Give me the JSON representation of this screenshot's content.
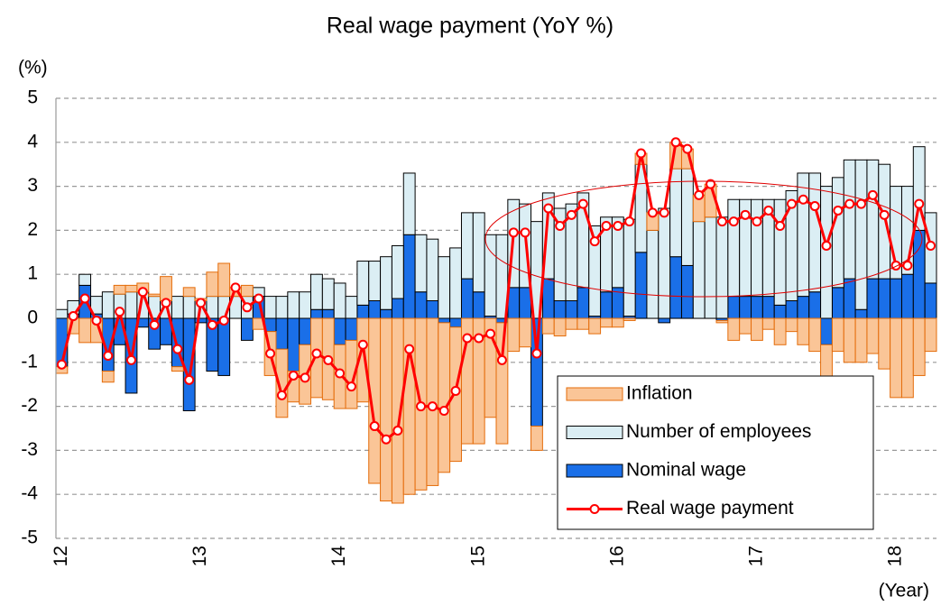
{
  "chart_data": {
    "type": "bar",
    "title": "Real wage payment (YoY %)",
    "y_label": "(%)",
    "x_label": "(Year)",
    "categories": [
      "12",
      null,
      null,
      null,
      null,
      null,
      null,
      null,
      null,
      null,
      null,
      null,
      "13",
      null,
      null,
      null,
      null,
      null,
      null,
      null,
      null,
      null,
      null,
      null,
      "14",
      null,
      null,
      null,
      null,
      null,
      null,
      null,
      null,
      null,
      null,
      null,
      "15",
      null,
      null,
      null,
      null,
      null,
      null,
      null,
      null,
      null,
      null,
      null,
      "16",
      null,
      null,
      null,
      null,
      null,
      null,
      null,
      null,
      null,
      null,
      null,
      "17",
      null,
      null,
      null,
      null,
      null,
      null,
      null,
      null,
      null,
      null,
      null,
      "18",
      null,
      null,
      null
    ],
    "ylim": [
      -5,
      5
    ],
    "yticks": [
      -5,
      -4,
      -3,
      -2,
      -1,
      0,
      1,
      2,
      3,
      4,
      5
    ],
    "grid": true,
    "series": [
      {
        "name": "Inflation",
        "type": "bar",
        "color": "#fac597",
        "edgecolor": "#e46c0a",
        "values": [
          -0.15,
          -0.35,
          -0.55,
          -0.55,
          -0.25,
          0.2,
          0.15,
          0.2,
          0.05,
          0.55,
          -0.1,
          0.2,
          0.05,
          0.55,
          0.75,
          0.2,
          0.25,
          -0.25,
          -1.0,
          -1.55,
          -0.7,
          -1.35,
          -1.8,
          -1.85,
          -1.45,
          -1.55,
          -1.9,
          -3.75,
          -4.15,
          -4.2,
          -4.0,
          -3.9,
          -3.8,
          -3.4,
          -3.05,
          -2.85,
          -2.85,
          -2.25,
          -2.75,
          -0.75,
          -0.65,
          -0.55,
          -0.35,
          -0.4,
          -0.25,
          -0.25,
          -0.35,
          -0.2,
          -0.2,
          -0.05,
          0.25,
          0.4,
          0.0,
          0.6,
          0.45,
          0.6,
          0.75,
          -0.05,
          -0.5,
          -0.35,
          -0.5,
          -0.25,
          -0.6,
          -0.3,
          -0.6,
          -0.75,
          -0.75,
          -0.75,
          -1.0,
          -1.0,
          -0.8,
          -1.15,
          -1.8,
          -1.8,
          -1.3,
          -0.75
        ]
      },
      {
        "name": "Number of employees",
        "type": "bar",
        "color": "#dbeef4",
        "edgecolor": "#000000",
        "values": [
          0.2,
          0.3,
          0.25,
          0.4,
          0.6,
          0.55,
          0.6,
          0.6,
          0.5,
          0.4,
          0.5,
          0.5,
          0.4,
          0.5,
          0.5,
          0.5,
          0.5,
          0.2,
          0.5,
          0.5,
          0.6,
          0.6,
          0.8,
          0.7,
          0.8,
          0.5,
          1.0,
          0.9,
          1.2,
          1.2,
          1.4,
          1.3,
          1.4,
          1.4,
          1.6,
          1.5,
          1.8,
          1.85,
          1.9,
          2.0,
          1.9,
          2.2,
          1.95,
          2.1,
          2.2,
          2.15,
          2.05,
          1.7,
          1.6,
          2.2,
          2.0,
          2.0,
          2.5,
          2.0,
          2.2,
          2.2,
          2.3,
          2.3,
          2.2,
          2.2,
          2.2,
          2.2,
          2.4,
          2.5,
          2.8,
          2.7,
          3.0,
          2.5,
          2.7,
          3.4,
          2.7,
          2.6,
          2.1,
          2.0,
          1.9,
          1.6
        ]
      },
      {
        "name": "Nominal wage",
        "type": "bar",
        "color": "#1a6fe8",
        "edgecolor": "#000000",
        "values": [
          -1.1,
          0.1,
          0.75,
          0.1,
          -1.2,
          -0.6,
          -1.7,
          -0.2,
          -0.7,
          -0.6,
          -1.1,
          -2.1,
          -0.1,
          -1.2,
          -1.3,
          0.0,
          -0.5,
          0.5,
          -0.3,
          -0.7,
          -1.2,
          -0.6,
          0.2,
          0.2,
          -0.6,
          -0.5,
          0.3,
          0.4,
          0.2,
          0.45,
          1.9,
          0.6,
          0.4,
          -0.1,
          -0.2,
          0.9,
          0.6,
          0.05,
          -0.1,
          0.7,
          0.7,
          -2.45,
          0.9,
          0.4,
          0.4,
          0.7,
          0.05,
          0.6,
          0.7,
          0.05,
          1.5,
          0.0,
          -0.1,
          1.4,
          1.2,
          0.0,
          0.0,
          -0.05,
          0.5,
          0.5,
          0.5,
          0.5,
          0.3,
          0.4,
          0.5,
          0.6,
          -0.6,
          0.7,
          0.9,
          0.2,
          0.9,
          0.9,
          0.9,
          1.0,
          2.0,
          0.8
        ]
      },
      {
        "name": "Real wage payment",
        "type": "line",
        "color": "#ff0000",
        "values": [
          -1.05,
          0.05,
          0.45,
          -0.05,
          -0.85,
          0.15,
          -0.95,
          0.6,
          -0.15,
          0.35,
          -0.7,
          -1.4,
          0.35,
          -0.15,
          -0.05,
          0.7,
          0.25,
          0.45,
          -0.8,
          -1.75,
          -1.3,
          -1.35,
          -0.8,
          -0.95,
          -1.25,
          -1.55,
          -0.6,
          -2.45,
          -2.75,
          -2.55,
          -0.7,
          -2.0,
          -2.0,
          -2.1,
          -1.65,
          -0.45,
          -0.45,
          -0.35,
          -0.95,
          1.95,
          1.95,
          -0.8,
          2.5,
          2.1,
          2.35,
          2.6,
          1.75,
          2.1,
          2.1,
          2.2,
          3.75,
          2.4,
          2.4,
          4.0,
          3.85,
          2.8,
          3.05,
          2.2,
          2.2,
          2.35,
          2.2,
          2.45,
          2.1,
          2.6,
          2.7,
          2.55,
          1.65,
          2.45,
          2.6,
          2.6,
          2.8,
          2.35,
          1.2,
          1.2,
          2.6,
          1.65
        ]
      }
    ]
  }
}
